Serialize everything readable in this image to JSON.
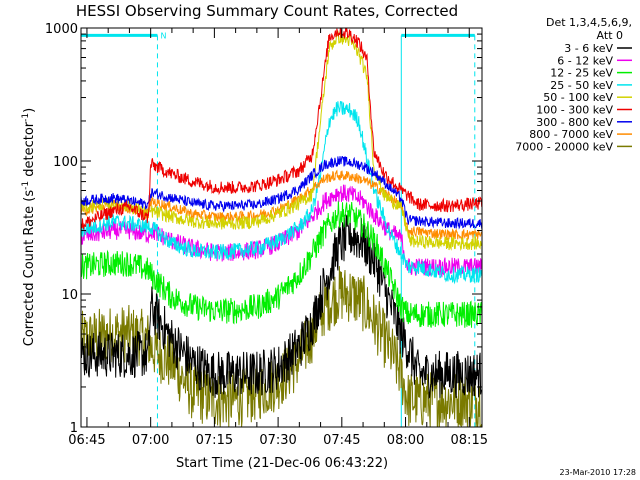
{
  "chart_data": {
    "type": "line",
    "title": "HESSI Observing Summary Count Rates, Corrected",
    "xlabel": "Start Time (21-Dec-06 06:43:22)",
    "ylabel_parts": [
      "Corrected Count Rate (s",
      "-1",
      " detector",
      "-1",
      ")"
    ],
    "y_scale": "log",
    "ylim": [
      1,
      1000
    ],
    "xlim_min": [
      -1.4,
      93.0
    ],
    "x_ticks": [
      {
        "min": 0,
        "label": "06:45"
      },
      {
        "min": 15,
        "label": "07:00"
      },
      {
        "min": 30,
        "label": "07:15"
      },
      {
        "min": 45,
        "label": "07:30"
      },
      {
        "min": 60,
        "label": "07:45"
      },
      {
        "min": 75,
        "label": "08:00"
      },
      {
        "min": 90,
        "label": "08:15"
      }
    ],
    "y_ticks": [
      {
        "v": 1,
        "label": "1"
      },
      {
        "v": 10,
        "label": "10"
      },
      {
        "v": 100,
        "label": "100"
      },
      {
        "v": 1000,
        "label": "1000"
      }
    ],
    "legend_header": [
      "Det 1,3,4,5,6,9,",
      "Att 0"
    ],
    "footer_date": "23-Mar-2010 17:28",
    "flags": {
      "color": "#00e5ee",
      "night_intervals_min": [
        [
          -1.4,
          16.6
        ],
        [
          74.0,
          91.3
        ]
      ],
      "saa_marker_label": "N",
      "saa_marker_min": 16.6
    },
    "series": [
      {
        "name": "3 - 6 keV",
        "color": "#000000",
        "noise": 0.18,
        "points": [
          [
            -1.4,
            3.5
          ],
          [
            6,
            3.5
          ],
          [
            12,
            3.5
          ],
          [
            14.5,
            3.5
          ],
          [
            15,
            8
          ],
          [
            20,
            4.5
          ],
          [
            25,
            3
          ],
          [
            30,
            2.5
          ],
          [
            35,
            2.5
          ],
          [
            40,
            2.5
          ],
          [
            45,
            2.8
          ],
          [
            50,
            4
          ],
          [
            53,
            6
          ],
          [
            56,
            12
          ],
          [
            59,
            22
          ],
          [
            62,
            28
          ],
          [
            65,
            25
          ],
          [
            68,
            17
          ],
          [
            71,
            9
          ],
          [
            74,
            5
          ],
          [
            75.5,
            4
          ],
          [
            78,
            2.5
          ],
          [
            85,
            2.5
          ],
          [
            93,
            2.5
          ]
        ]
      },
      {
        "name": "6 - 12 keV",
        "color": "#ee00ee",
        "noise": 0.07,
        "points": [
          [
            -1.4,
            27
          ],
          [
            6,
            30
          ],
          [
            10,
            30
          ],
          [
            14.5,
            28
          ],
          [
            15,
            30
          ],
          [
            20,
            25
          ],
          [
            25,
            22
          ],
          [
            30,
            20.5
          ],
          [
            35,
            20.5
          ],
          [
            40,
            21.5
          ],
          [
            45,
            24
          ],
          [
            50,
            30
          ],
          [
            53,
            38
          ],
          [
            56,
            50
          ],
          [
            59,
            58
          ],
          [
            62,
            56
          ],
          [
            65,
            50
          ],
          [
            68,
            38
          ],
          [
            71,
            30
          ],
          [
            74,
            26
          ],
          [
            75.5,
            16
          ],
          [
            78,
            16
          ],
          [
            85,
            16
          ],
          [
            93,
            16
          ]
        ]
      },
      {
        "name": "12 - 25 keV",
        "color": "#00ee00",
        "noise": 0.1,
        "points": [
          [
            -1.4,
            16
          ],
          [
            6,
            17
          ],
          [
            10,
            17
          ],
          [
            14.5,
            15
          ],
          [
            15,
            14
          ],
          [
            20,
            9.5
          ],
          [
            25,
            8
          ],
          [
            30,
            7.5
          ],
          [
            35,
            7.5
          ],
          [
            40,
            8
          ],
          [
            45,
            9.5
          ],
          [
            50,
            14
          ],
          [
            53,
            20
          ],
          [
            56,
            30
          ],
          [
            59,
            40
          ],
          [
            62,
            40
          ],
          [
            65,
            33
          ],
          [
            68,
            24
          ],
          [
            71,
            14
          ],
          [
            74,
            8
          ],
          [
            75.5,
            7
          ],
          [
            78,
            7
          ],
          [
            85,
            7
          ],
          [
            93,
            7
          ]
        ]
      },
      {
        "name": "25 - 50 keV",
        "color": "#00e5ee",
        "noise": 0.06,
        "points": [
          [
            -1.4,
            30
          ],
          [
            6,
            35
          ],
          [
            10,
            34
          ],
          [
            14.5,
            32
          ],
          [
            15,
            32
          ],
          [
            20,
            24
          ],
          [
            25,
            21
          ],
          [
            30,
            20.5
          ],
          [
            35,
            21
          ],
          [
            40,
            22
          ],
          [
            45,
            25
          ],
          [
            50,
            32
          ],
          [
            53,
            42
          ],
          [
            55,
            80
          ],
          [
            57,
            200
          ],
          [
            59,
            250
          ],
          [
            62,
            240
          ],
          [
            64,
            200
          ],
          [
            66,
            100
          ],
          [
            68,
            55
          ],
          [
            71,
            30
          ],
          [
            74,
            20
          ],
          [
            75.5,
            16
          ],
          [
            78,
            16
          ],
          [
            85,
            14
          ],
          [
            93,
            14
          ]
        ]
      },
      {
        "name": "50 - 100 keV",
        "color": "#d2d200",
        "noise": 0.05,
        "points": [
          [
            -1.4,
            45
          ],
          [
            6,
            48
          ],
          [
            10,
            46
          ],
          [
            14.5,
            40
          ],
          [
            15,
            42
          ],
          [
            20,
            38
          ],
          [
            25,
            35
          ],
          [
            30,
            34
          ],
          [
            35,
            34
          ],
          [
            40,
            35
          ],
          [
            45,
            40
          ],
          [
            50,
            48
          ],
          [
            53,
            56
          ],
          [
            55,
            200
          ],
          [
            57,
            700
          ],
          [
            59,
            860
          ],
          [
            62,
            800
          ],
          [
            64,
            640
          ],
          [
            66,
            420
          ],
          [
            67.5,
            90
          ],
          [
            70,
            55
          ],
          [
            74,
            45
          ],
          [
            76,
            25
          ],
          [
            85,
            24
          ],
          [
            93,
            24
          ]
        ]
      },
      {
        "name": "100 - 300 keV",
        "color": "#ee0000",
        "noise": 0.05,
        "points": [
          [
            -1.4,
            33
          ],
          [
            6,
            42
          ],
          [
            10,
            45
          ],
          [
            14.5,
            37
          ],
          [
            15,
            95
          ],
          [
            20,
            80
          ],
          [
            25,
            70
          ],
          [
            30,
            64
          ],
          [
            35,
            63
          ],
          [
            40,
            65
          ],
          [
            45,
            72
          ],
          [
            50,
            85
          ],
          [
            53,
            110
          ],
          [
            55,
            300
          ],
          [
            57,
            850
          ],
          [
            59,
            950
          ],
          [
            62,
            900
          ],
          [
            64,
            780
          ],
          [
            66,
            560
          ],
          [
            67.5,
            120
          ],
          [
            70,
            80
          ],
          [
            74,
            60
          ],
          [
            75.5,
            55
          ],
          [
            78,
            47
          ],
          [
            85,
            46
          ],
          [
            93,
            48
          ]
        ]
      },
      {
        "name": "300 - 800 keV",
        "color": "#0000ee",
        "noise": 0.04,
        "points": [
          [
            -1.4,
            50
          ],
          [
            6,
            53
          ],
          [
            10,
            50
          ],
          [
            14.5,
            47
          ],
          [
            15,
            58
          ],
          [
            20,
            53
          ],
          [
            25,
            48
          ],
          [
            30,
            46
          ],
          [
            35,
            46
          ],
          [
            40,
            47
          ],
          [
            45,
            52
          ],
          [
            50,
            62
          ],
          [
            53,
            78
          ],
          [
            56,
            94
          ],
          [
            59,
            100
          ],
          [
            62,
            98
          ],
          [
            65,
            92
          ],
          [
            68,
            80
          ],
          [
            71,
            65
          ],
          [
            74,
            52
          ],
          [
            75.5,
            36
          ],
          [
            85,
            34
          ],
          [
            93,
            34
          ]
        ]
      },
      {
        "name": "800 - 7000 keV",
        "color": "#ff8c00",
        "noise": 0.04,
        "points": [
          [
            -1.4,
            42
          ],
          [
            6,
            47
          ],
          [
            10,
            44
          ],
          [
            14.5,
            40
          ],
          [
            15,
            50
          ],
          [
            20,
            45
          ],
          [
            25,
            40
          ],
          [
            30,
            38
          ],
          [
            35,
            38
          ],
          [
            40,
            39
          ],
          [
            45,
            43
          ],
          [
            50,
            52
          ],
          [
            53,
            62
          ],
          [
            56,
            74
          ],
          [
            59,
            78
          ],
          [
            62,
            77
          ],
          [
            65,
            72
          ],
          [
            68,
            64
          ],
          [
            71,
            55
          ],
          [
            74,
            45
          ],
          [
            75.5,
            30
          ],
          [
            85,
            28
          ],
          [
            93,
            28
          ]
        ]
      },
      {
        "name": "7000 - 20000 keV",
        "color": "#7a7a00",
        "noise": 0.22,
        "points": [
          [
            -1.4,
            4.5
          ],
          [
            6,
            5
          ],
          [
            10,
            5
          ],
          [
            14.5,
            4.5
          ],
          [
            15,
            4
          ],
          [
            20,
            3
          ],
          [
            25,
            1.8
          ],
          [
            30,
            1.6
          ],
          [
            35,
            1.6
          ],
          [
            40,
            1.8
          ],
          [
            45,
            2.2
          ],
          [
            50,
            3.2
          ],
          [
            53,
            5
          ],
          [
            56,
            8
          ],
          [
            59,
            10
          ],
          [
            62,
            10
          ],
          [
            65,
            8.5
          ],
          [
            68,
            6
          ],
          [
            71,
            4
          ],
          [
            74,
            2.5
          ],
          [
            75.5,
            1.6
          ],
          [
            85,
            1.6
          ],
          [
            93,
            1.6
          ]
        ]
      }
    ]
  }
}
